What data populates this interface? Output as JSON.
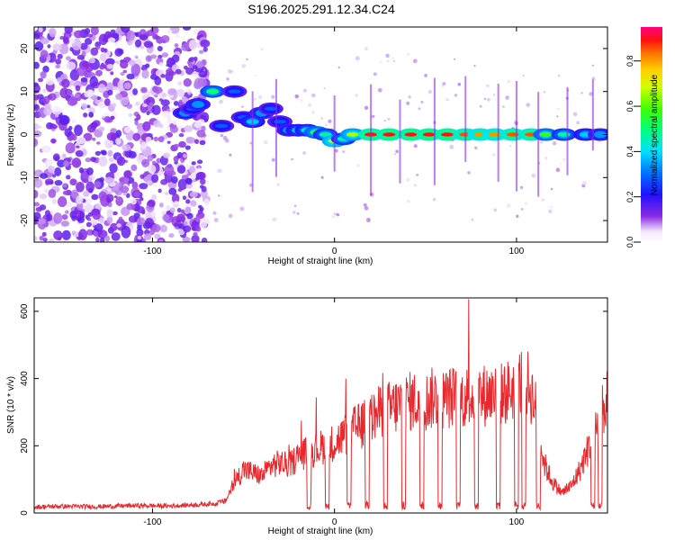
{
  "chart_data": [
    {
      "type": "heatmap",
      "title": "S196.2025.291.12.34.C24",
      "xlabel": "Height of straight line (km)",
      "ylabel": "Frequency (Hz)",
      "xlim": [
        -165,
        150
      ],
      "ylim": [
        -25,
        25
      ],
      "xticks": [
        -100,
        0,
        100
      ],
      "yticks": [
        -20,
        -10,
        0,
        10,
        20
      ],
      "colorbar": {
        "label": "Normalized spectral amplitude",
        "range": [
          0.0,
          0.95
        ],
        "ticks": [
          "0.0",
          "0.2",
          "0.4",
          "0.6",
          "0.8"
        ]
      },
      "noise_region_x": [
        -165,
        -70
      ],
      "ridge": [
        {
          "x": -82,
          "y": 5,
          "a": 0.35
        },
        {
          "x": -78,
          "y": 6,
          "a": 0.3
        },
        {
          "x": -75,
          "y": 7,
          "a": 0.35
        },
        {
          "x": -67,
          "y": 10,
          "a": 0.55
        },
        {
          "x": -62,
          "y": 2,
          "a": 0.3
        },
        {
          "x": -55,
          "y": 10,
          "a": 0.3
        },
        {
          "x": -50,
          "y": 4,
          "a": 0.3
        },
        {
          "x": -45,
          "y": 3,
          "a": 0.4
        },
        {
          "x": -40,
          "y": 5,
          "a": 0.35
        },
        {
          "x": -35,
          "y": 6,
          "a": 0.3
        },
        {
          "x": -30,
          "y": 3,
          "a": 0.3
        },
        {
          "x": -25,
          "y": 1,
          "a": 0.35
        },
        {
          "x": -20,
          "y": 1,
          "a": 0.4
        },
        {
          "x": -15,
          "y": 1,
          "a": 0.45
        },
        {
          "x": -10,
          "y": 0.5,
          "a": 0.6
        },
        {
          "x": -5,
          "y": 0,
          "a": 0.5
        },
        {
          "x": 0,
          "y": -1.5,
          "a": 0.75
        },
        {
          "x": 5,
          "y": -1,
          "a": 0.5
        },
        {
          "x": 10,
          "y": 0,
          "a": 0.7
        },
        {
          "x": 20,
          "y": 0,
          "a": 0.95
        },
        {
          "x": 30,
          "y": 0,
          "a": 0.95
        },
        {
          "x": 42,
          "y": 0,
          "a": 0.95
        },
        {
          "x": 52,
          "y": 0,
          "a": 0.95
        },
        {
          "x": 62,
          "y": 0,
          "a": 0.95
        },
        {
          "x": 72,
          "y": 0,
          "a": 0.9
        },
        {
          "x": 80,
          "y": 0,
          "a": 0.85
        },
        {
          "x": 88,
          "y": 0,
          "a": 0.85
        },
        {
          "x": 98,
          "y": 0,
          "a": 0.9
        },
        {
          "x": 108,
          "y": 0,
          "a": 0.9
        },
        {
          "x": 116,
          "y": 0,
          "a": 0.6
        },
        {
          "x": 126,
          "y": 0,
          "a": 0.5
        },
        {
          "x": 138,
          "y": 0,
          "a": 0.4
        },
        {
          "x": 146,
          "y": 0,
          "a": 0.35
        }
      ]
    },
    {
      "type": "line",
      "title": "",
      "xlabel": "Height of straight line (km)",
      "ylabel": "SNR (10 * v/v)",
      "xlim": [
        -165,
        150
      ],
      "ylim": [
        0,
        640
      ],
      "xticks": [
        -100,
        0,
        100
      ],
      "yticks": [
        0,
        200,
        400,
        600
      ],
      "series": [
        {
          "name": "SNR",
          "color": "#e8282d",
          "x": [
            -165,
            -150,
            -130,
            -110,
            -90,
            -75,
            -65,
            -60,
            -55,
            -50,
            -45,
            -40,
            -35,
            -30,
            -25,
            -20,
            -15,
            -10,
            -5,
            0,
            5,
            10,
            15,
            20,
            25,
            30,
            35,
            40,
            45,
            50,
            55,
            60,
            65,
            70,
            75,
            80,
            85,
            90,
            95,
            100,
            105,
            110,
            115,
            120,
            125,
            130,
            135,
            140,
            145,
            150
          ],
          "y": [
            18,
            20,
            19,
            22,
            21,
            25,
            28,
            35,
            90,
            130,
            120,
            110,
            140,
            150,
            140,
            170,
            180,
            190,
            200,
            210,
            230,
            250,
            260,
            280,
            300,
            310,
            320,
            330,
            335,
            330,
            345,
            340,
            345,
            340,
            350,
            345,
            355,
            350,
            360,
            380,
            400,
            330,
            150,
            90,
            60,
            80,
            130,
            200,
            280,
            340
          ]
        }
      ],
      "dropouts_x": [
        -14,
        -4,
        8,
        18,
        28,
        38,
        48,
        58,
        68,
        78,
        90,
        100,
        104,
        112,
        142,
        146
      ]
    }
  ]
}
